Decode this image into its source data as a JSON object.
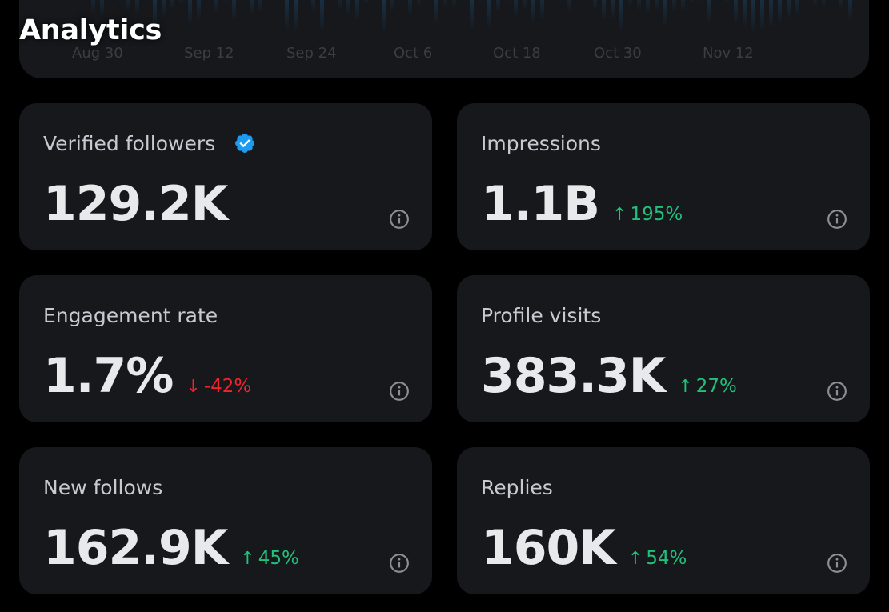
{
  "page": {
    "title": "Analytics"
  },
  "timeline_chart": {
    "x_labels": [
      "Aug 30",
      "Sep 12",
      "Sep 24",
      "Oct 6",
      "Oct 18",
      "Oct 30",
      "Nov 12"
    ],
    "bar_color": "#1d4a6e"
  },
  "colors": {
    "positive": "#22c07a",
    "negative": "#f4212e",
    "verified": "#1d9bf0",
    "card_bg": "#16181c"
  },
  "metrics": [
    {
      "label": "Verified followers",
      "value": "129.2K",
      "change": "",
      "direction": "",
      "icon": "verified-badge-icon"
    },
    {
      "label": "Impressions",
      "value": "1.1B",
      "change": "195%",
      "direction": "up"
    },
    {
      "label": "Engagement rate",
      "value": "1.7%",
      "change": "-42%",
      "direction": "down"
    },
    {
      "label": "Profile visits",
      "value": "383.3K",
      "change": "27%",
      "direction": "up"
    },
    {
      "label": "New follows",
      "value": "162.9K",
      "change": "45%",
      "direction": "up"
    },
    {
      "label": "Replies",
      "value": "160K",
      "change": "54%",
      "direction": "up"
    }
  ]
}
